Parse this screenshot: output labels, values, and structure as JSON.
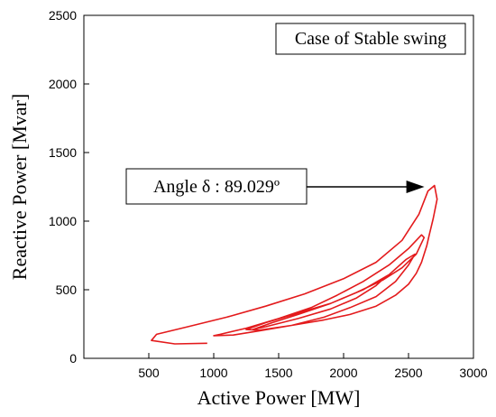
{
  "chart_data": {
    "type": "line",
    "xlabel": "Active Power [MW]",
    "ylabel": "Reactive Power [Mvar]",
    "xlim": [
      0,
      3000
    ],
    "ylim": [
      0,
      2500
    ],
    "xticks": [
      "500",
      "1000",
      "1500",
      "2000",
      "2500",
      "3000"
    ],
    "yticks": [
      "0",
      "500",
      "1000",
      "1500",
      "2000",
      "2500"
    ],
    "grid": false,
    "series_color": "#e31a1c",
    "legend_text": "Case of Stable swing",
    "annotation": {
      "text": "Angle δ : 89.029º",
      "x": 2650,
      "y": 1250
    },
    "series": [
      {
        "x": [
          950,
          700,
          520,
          560,
          800,
          1100,
          1400,
          1700,
          2000,
          2250,
          2450,
          2580,
          2650,
          2700,
          2720,
          2690,
          2660,
          2640,
          2620,
          2600,
          2560,
          2500,
          2400,
          2250,
          2050,
          1850,
          1600,
          1350,
          1150,
          1000,
          1050,
          1250,
          1500,
          1750,
          1950,
          2150,
          2350,
          2500,
          2600,
          2620,
          2560,
          2450,
          2300,
          2100,
          1900,
          1650,
          1400,
          1250,
          1350,
          1600,
          1850,
          2050,
          2250,
          2400,
          2500,
          2550,
          2480,
          2350,
          2150,
          1900,
          1650,
          1450,
          1300,
          1400,
          1650,
          1900,
          2100,
          2250,
          2330
        ],
        "y": [
          110,
          105,
          130,
          175,
          230,
          300,
          380,
          470,
          580,
          700,
          860,
          1050,
          1220,
          1260,
          1160,
          1020,
          900,
          820,
          760,
          700,
          620,
          540,
          460,
          380,
          320,
          280,
          240,
          200,
          170,
          165,
          175,
          220,
          290,
          370,
          460,
          560,
          680,
          800,
          900,
          880,
          760,
          660,
          570,
          480,
          400,
          330,
          260,
          210,
          205,
          240,
          300,
          370,
          450,
          560,
          680,
          760,
          720,
          610,
          500,
          400,
          320,
          260,
          210,
          230,
          290,
          360,
          440,
          530,
          600
        ]
      }
    ]
  }
}
